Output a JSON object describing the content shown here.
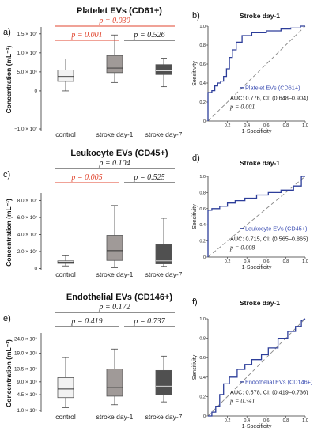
{
  "colors": {
    "significant": "#e0452f",
    "not_significant": "#222222",
    "roc_line": "#2d3e9a",
    "legend_text": "#3b4db3",
    "diagonal": "#888888",
    "box_control": "#f2f2f2",
    "box_day1": "#a09a98",
    "box_day7": "#505050"
  },
  "chart_data": [
    {
      "panel": "a)",
      "type": "box",
      "title": "Platelet EVs (CD61+)",
      "ylabel": "Concentration (mL⁻¹)",
      "ylim": [
        -10000000,
        16000000
      ],
      "yticks": [
        {
          "value": -10000000,
          "label": "−1.0 × 10⁷"
        },
        {
          "value": 0,
          "label": "0"
        },
        {
          "value": 5000000,
          "label": "5.0 × 10⁶"
        },
        {
          "value": 10000000,
          "label": "1.0 × 10⁷"
        },
        {
          "value": 15000000,
          "label": "1.5 × 10⁷"
        }
      ],
      "categories": [
        "control",
        "stroke day-1",
        "stroke day-7"
      ],
      "boxes": [
        {
          "min": 0,
          "q1": 2500000,
          "median": 3800000,
          "q3": 5500000,
          "max": 8400000
        },
        {
          "min": 2200000,
          "q1": 4800000,
          "median": 6000000,
          "q3": 9300000,
          "max": 14700000
        },
        {
          "min": 1100000,
          "q1": 4300000,
          "median": 5300000,
          "q3": 6900000,
          "max": 8600000
        }
      ],
      "comparisons": [
        {
          "label": "p = 0.030",
          "from": 0,
          "to": 2,
          "significant": true
        },
        {
          "label": "p = 0.001",
          "from": 0,
          "to": 1,
          "significant": true
        },
        {
          "label": "p = 0.526",
          "from": 1,
          "to": 2,
          "significant": false
        }
      ]
    },
    {
      "panel": "c)",
      "type": "box",
      "title": "Leukocyte EVs (CD45+)",
      "ylabel": "Concentration (mL⁻¹)",
      "ylim": [
        -500000,
        85000000
      ],
      "yticks": [
        {
          "value": 0,
          "label": "0"
        },
        {
          "value": 20000000,
          "label": "2.0 × 10⁷"
        },
        {
          "value": 40000000,
          "label": "4.0 × 10⁷"
        },
        {
          "value": 60000000,
          "label": "6.0 × 10⁷"
        },
        {
          "value": 80000000,
          "label": "8.0 × 10⁷"
        }
      ],
      "categories": [
        "control",
        "stroke day-1",
        "stroke day-7"
      ],
      "boxes": [
        {
          "min": 3000000,
          "q1": 6000000,
          "median": 7500000,
          "q3": 9000000,
          "max": 15000000
        },
        {
          "min": 1000000,
          "q1": 9500000,
          "median": 21000000,
          "q3": 39000000,
          "max": 74000000
        },
        {
          "min": 2500000,
          "q1": 5500000,
          "median": 9000000,
          "q3": 28000000,
          "max": 59000000
        }
      ],
      "comparisons": [
        {
          "label": "p = 0.104",
          "from": 0,
          "to": 2,
          "significant": false
        },
        {
          "label": "p = 0.005",
          "from": 0,
          "to": 1,
          "significant": true
        },
        {
          "label": "p = 0.525",
          "from": 1,
          "to": 2,
          "significant": false
        }
      ]
    },
    {
      "panel": "e)",
      "type": "box",
      "title": "Endothelial EVs (CD146+)",
      "ylabel": "Concentration (mL⁻¹)",
      "ylim": [
        -100000,
        2500000
      ],
      "yticks": [
        {
          "value": -100000,
          "label": "−1.0 × 10⁵"
        },
        {
          "value": 450000,
          "label": "4.5 × 10⁵"
        },
        {
          "value": 900000,
          "label": "9.0 × 10⁵"
        },
        {
          "value": 1350000,
          "label": "13.5 × 10⁵"
        },
        {
          "value": 1900000,
          "label": "19.0 × 10⁵"
        },
        {
          "value": 2400000,
          "label": "24.0 × 10⁵"
        }
      ],
      "categories": [
        "control",
        "stroke day-1",
        "stroke day-7"
      ],
      "boxes": [
        {
          "min": 0,
          "q1": 350000,
          "median": 650000,
          "q3": 1050000,
          "max": 1750000
        },
        {
          "min": 100000,
          "q1": 400000,
          "median": 700000,
          "q3": 1350000,
          "max": 2050000
        },
        {
          "min": 200000,
          "q1": 450000,
          "median": 750000,
          "q3": 1300000,
          "max": 1800000
        }
      ],
      "comparisons": [
        {
          "label": "p = 0.172",
          "from": 0,
          "to": 2,
          "significant": false
        },
        {
          "label": "p = 0.419",
          "from": 0,
          "to": 1,
          "significant": false
        },
        {
          "label": "p = 0.737",
          "from": 1,
          "to": 2,
          "significant": false
        }
      ]
    },
    {
      "panel": "b)",
      "type": "line",
      "title": "Stroke day-1",
      "xlabel": "1-Specificity",
      "ylabel": "Sensitivity",
      "xlim": [
        0,
        1
      ],
      "ylim": [
        0,
        1
      ],
      "ticks": [
        "0",
        "0.2",
        "0.4",
        "0.6",
        "0.8",
        "1.0"
      ],
      "legend": "Platelet EVs (CD61+)",
      "auc": "AUC: 0.776, CI: (0.648–0.904)",
      "p": "p = 0.001",
      "series": [
        {
          "x": [
            0,
            0,
            0.04,
            0.04,
            0.07,
            0.07,
            0.1,
            0.1,
            0.13,
            0.13,
            0.16,
            0.16,
            0.19,
            0.19,
            0.22,
            0.22,
            0.25,
            0.25,
            0.29,
            0.29,
            0.35,
            0.35,
            0.45,
            0.45,
            0.6,
            0.6,
            0.75,
            0.75,
            0.85,
            0.85,
            0.95,
            0.95,
            1.0
          ],
          "y": [
            0,
            0.3,
            0.3,
            0.32,
            0.32,
            0.37,
            0.37,
            0.4,
            0.4,
            0.42,
            0.42,
            0.47,
            0.47,
            0.55,
            0.55,
            0.67,
            0.67,
            0.75,
            0.75,
            0.83,
            0.83,
            0.9,
            0.9,
            0.93,
            0.93,
            0.95,
            0.95,
            0.97,
            0.97,
            0.98,
            0.98,
            1.0,
            1.0
          ]
        }
      ]
    },
    {
      "panel": "d)",
      "type": "line",
      "title": "Stroke day-1",
      "xlabel": "1-Specificity",
      "ylabel": "Sensitivity",
      "xlim": [
        0,
        1
      ],
      "ylim": [
        0,
        1
      ],
      "ticks": [
        "0",
        "0.2",
        "0.4",
        "0.6",
        "0.8",
        "1.0"
      ],
      "legend": "Leukocyte EVs (CD45+)",
      "auc": "AUC: 0.715, CI: (0.565–0.865)",
      "p": "p = 0.008",
      "series": [
        {
          "x": [
            0,
            0,
            0.04,
            0.04,
            0.12,
            0.12,
            0.2,
            0.2,
            0.28,
            0.28,
            0.38,
            0.38,
            0.5,
            0.5,
            0.62,
            0.62,
            0.75,
            0.75,
            0.88,
            0.88,
            0.96,
            0.96,
            1.0
          ],
          "y": [
            0,
            0.58,
            0.58,
            0.6,
            0.6,
            0.63,
            0.63,
            0.67,
            0.67,
            0.7,
            0.7,
            0.73,
            0.73,
            0.77,
            0.77,
            0.8,
            0.8,
            0.83,
            0.83,
            0.88,
            0.88,
            1.0,
            1.0
          ]
        }
      ]
    },
    {
      "panel": "f)",
      "type": "line",
      "title": "Stroke day-1",
      "xlabel": "1-Specificity",
      "ylabel": "Sensitivity",
      "xlim": [
        0,
        1
      ],
      "ylim": [
        0,
        1
      ],
      "ticks": [
        "0",
        "0.2",
        "0.4",
        "0.6",
        "0.8",
        "1.0"
      ],
      "legend": "Endothelial EVs (CD146+)",
      "auc": "AUC: 0.578, CI: (0.419–0.736)",
      "p": "p = 0.341",
      "series": [
        {
          "x": [
            0,
            0.04,
            0.04,
            0.08,
            0.08,
            0.12,
            0.12,
            0.16,
            0.16,
            0.22,
            0.22,
            0.3,
            0.3,
            0.38,
            0.38,
            0.45,
            0.45,
            0.55,
            0.55,
            0.62,
            0.62,
            0.72,
            0.72,
            0.82,
            0.82,
            0.9,
            0.9,
            0.96,
            0.96,
            1.0
          ],
          "y": [
            0,
            0,
            0.04,
            0.04,
            0.1,
            0.1,
            0.22,
            0.22,
            0.33,
            0.33,
            0.4,
            0.4,
            0.48,
            0.48,
            0.53,
            0.53,
            0.58,
            0.58,
            0.63,
            0.63,
            0.7,
            0.7,
            0.8,
            0.8,
            0.87,
            0.87,
            0.92,
            0.92,
            0.98,
            1.0
          ]
        }
      ]
    }
  ]
}
